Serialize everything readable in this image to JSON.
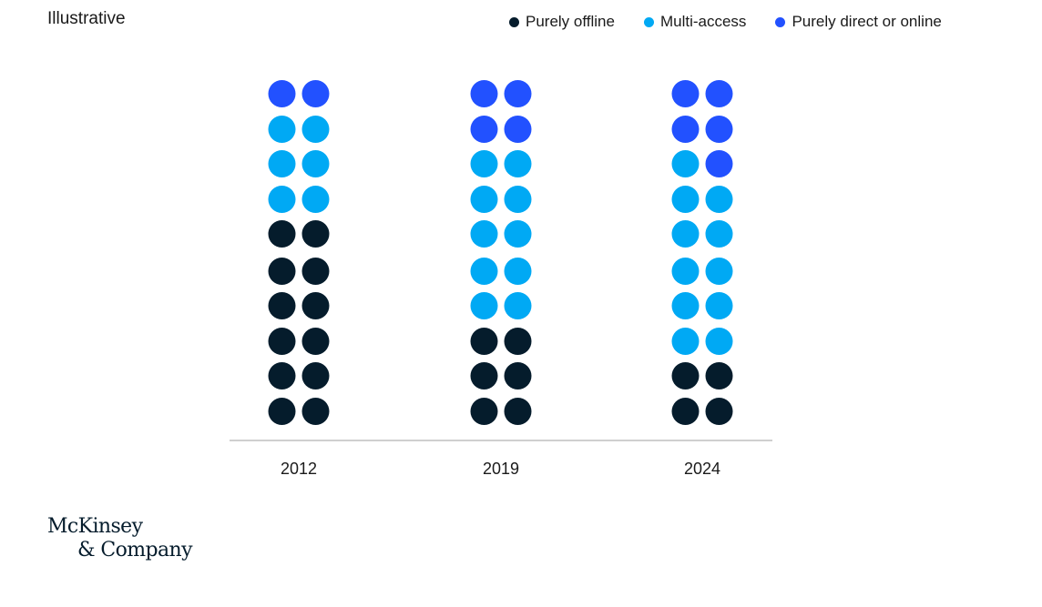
{
  "note": "Illustrative",
  "colors": {
    "offline": "#051c2c",
    "multi": "#00a9f4",
    "online": "#2251ff",
    "axis": "#bfbfbf",
    "text": "#1a1a1a"
  },
  "chart_data": {
    "type": "dot-matrix",
    "categories": [
      "2012",
      "2019",
      "2024"
    ],
    "dots_per_column": 20,
    "series": [
      {
        "name": "Purely offline",
        "key": "offline",
        "values": [
          12,
          6,
          4
        ]
      },
      {
        "name": "Multi-access",
        "key": "multi",
        "values": [
          6,
          10,
          11
        ]
      },
      {
        "name": "Purely direct or online",
        "key": "online",
        "values": [
          2,
          4,
          5
        ]
      }
    ],
    "legend_position": "top-right"
  },
  "logo": {
    "line1": "McKinsey",
    "line2": "& Company"
  }
}
